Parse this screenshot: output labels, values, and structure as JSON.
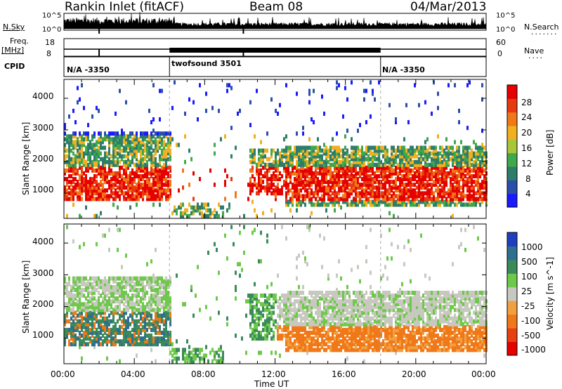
{
  "header": {
    "left": "Rankin Inlet (fitACF)",
    "center": "Beam 08",
    "right": "04/Mar/2013"
  },
  "strip_labels": {
    "nsky": "N.Sky",
    "nsky_ticks": [
      "10^5",
      "10^0"
    ],
    "nsearch": "N.Search",
    "nsearch_ticks": [
      "10^5",
      "10^0"
    ],
    "freq": "Freq.",
    "freq_unit": "[MHz]",
    "freq_ticks": [
      "18",
      "8"
    ],
    "nave": "Nave",
    "nave_ticks": [
      "60",
      "0"
    ],
    "cpid": "CPID"
  },
  "cpid_segments": [
    {
      "label": "N/A -3350",
      "start_hour": 0,
      "end_hour": 6
    },
    {
      "label": "twofsound 3501",
      "start_hour": 6,
      "end_hour": 18
    },
    {
      "label": "N/A -3350",
      "start_hour": 18,
      "end_hour": 24
    }
  ],
  "chart_data": [
    {
      "type": "heatmap",
      "name": "power",
      "ylabel": "Slant Range [km]",
      "yticks": [
        "1000",
        "2000",
        "3000",
        "4000"
      ],
      "ylim": [
        200,
        4600
      ],
      "xlim": [
        0,
        24
      ],
      "colorbar": {
        "label": "Power [dB]",
        "ticks": [
          "4",
          "8",
          "12",
          "16",
          "20",
          "24",
          "28"
        ],
        "range": [
          0,
          30
        ],
        "colors": [
          "#1a1aff",
          "#2a4fa8",
          "#2e7d6b",
          "#3fa84a",
          "#a8c63a",
          "#f0b020",
          "#f07818",
          "#e83a10",
          "#e60000"
        ]
      }
    },
    {
      "type": "heatmap",
      "name": "velocity",
      "ylabel": "Slant Range [km]",
      "yticks": [
        "1000",
        "2000",
        "3000",
        "4000"
      ],
      "ylim": [
        200,
        4600
      ],
      "xlim": [
        0,
        24
      ],
      "xlabel": "Time UT",
      "xticks": [
        "00:00",
        "04:00",
        "08:00",
        "12:00",
        "16:00",
        "20:00",
        "00:00"
      ],
      "colorbar": {
        "label": "Velocity [m s^-1]",
        "ticks": [
          "1000",
          "500",
          "100",
          "25",
          "-25",
          "-100",
          "-500",
          "-1000"
        ],
        "colors": [
          "#1f3fbf",
          "#2e6e8e",
          "#3a8a5a",
          "#6ec84a",
          "#c8c8c0",
          "#f0a040",
          "#f07818",
          "#e84010",
          "#e60000"
        ]
      }
    }
  ]
}
